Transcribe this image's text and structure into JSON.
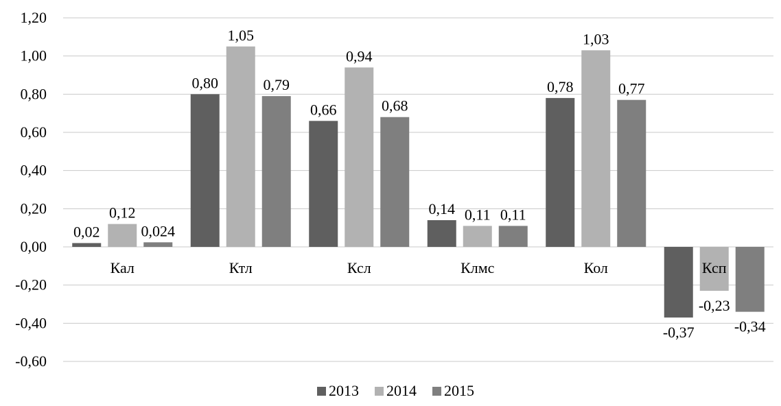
{
  "chart_data": {
    "type": "bar",
    "categories": [
      "Кал",
      "Ктл",
      "Ксл",
      "Клмс",
      "Кол",
      "Ксп"
    ],
    "series": [
      {
        "name": "2013",
        "values": [
          0.02,
          0.8,
          0.66,
          0.14,
          0.78,
          -0.37
        ],
        "labels": [
          "0,02",
          "0,80",
          "0,66",
          "0,14",
          "0,78",
          "-0,37"
        ],
        "color": "#5f5f5f"
      },
      {
        "name": "2014",
        "values": [
          0.12,
          1.05,
          0.94,
          0.11,
          1.03,
          -0.23
        ],
        "labels": [
          "0,12",
          "1,05",
          "0,94",
          "0,11",
          "1,03",
          "-0,23"
        ],
        "color": "#b2b2b2"
      },
      {
        "name": "2015",
        "values": [
          0.024,
          0.79,
          0.68,
          0.11,
          0.77,
          -0.34
        ],
        "labels": [
          "0,024",
          "0,79",
          "0,68",
          "0,11",
          "0,77",
          "-0,34"
        ],
        "color": "#7f7f7f"
      }
    ],
    "ylim": [
      -0.6,
      1.2
    ],
    "yticks": [
      1.2,
      1.0,
      0.8,
      0.6,
      0.4,
      0.2,
      0.0,
      -0.2,
      -0.4,
      -0.6
    ],
    "ytick_labels": [
      "1,20",
      "1,00",
      "0,80",
      "0,60",
      "0,40",
      "0,20",
      "0,00",
      "-0,20",
      "-0,40",
      "-0,60"
    ],
    "grid": true,
    "legend": "bottom",
    "title": "",
    "xlabel": "",
    "ylabel": ""
  }
}
